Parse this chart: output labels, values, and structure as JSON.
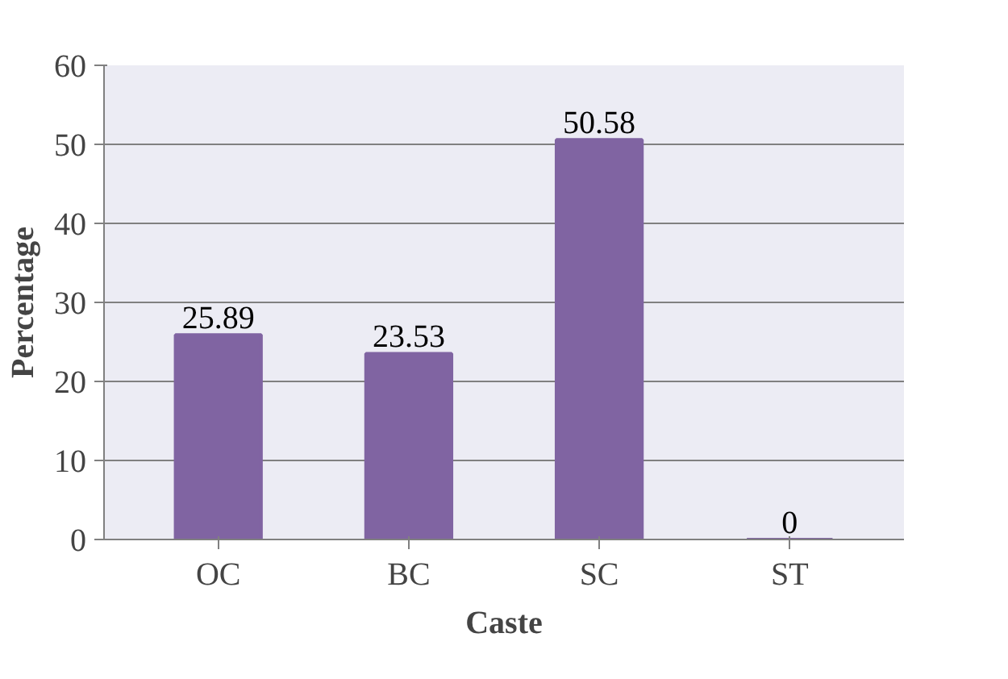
{
  "chart_data": {
    "type": "bar",
    "xlabel": "Caste",
    "ylabel": "Percentage",
    "categories": [
      "OC",
      "BC",
      "SC",
      "ST"
    ],
    "values": [
      25.89,
      23.53,
      50.58,
      0
    ],
    "color": "#8064a2",
    "ylim": [
      0,
      60
    ],
    "yticks": [
      0,
      10,
      20,
      30,
      40,
      50,
      60
    ],
    "grid": "y",
    "data_labels": true
  }
}
